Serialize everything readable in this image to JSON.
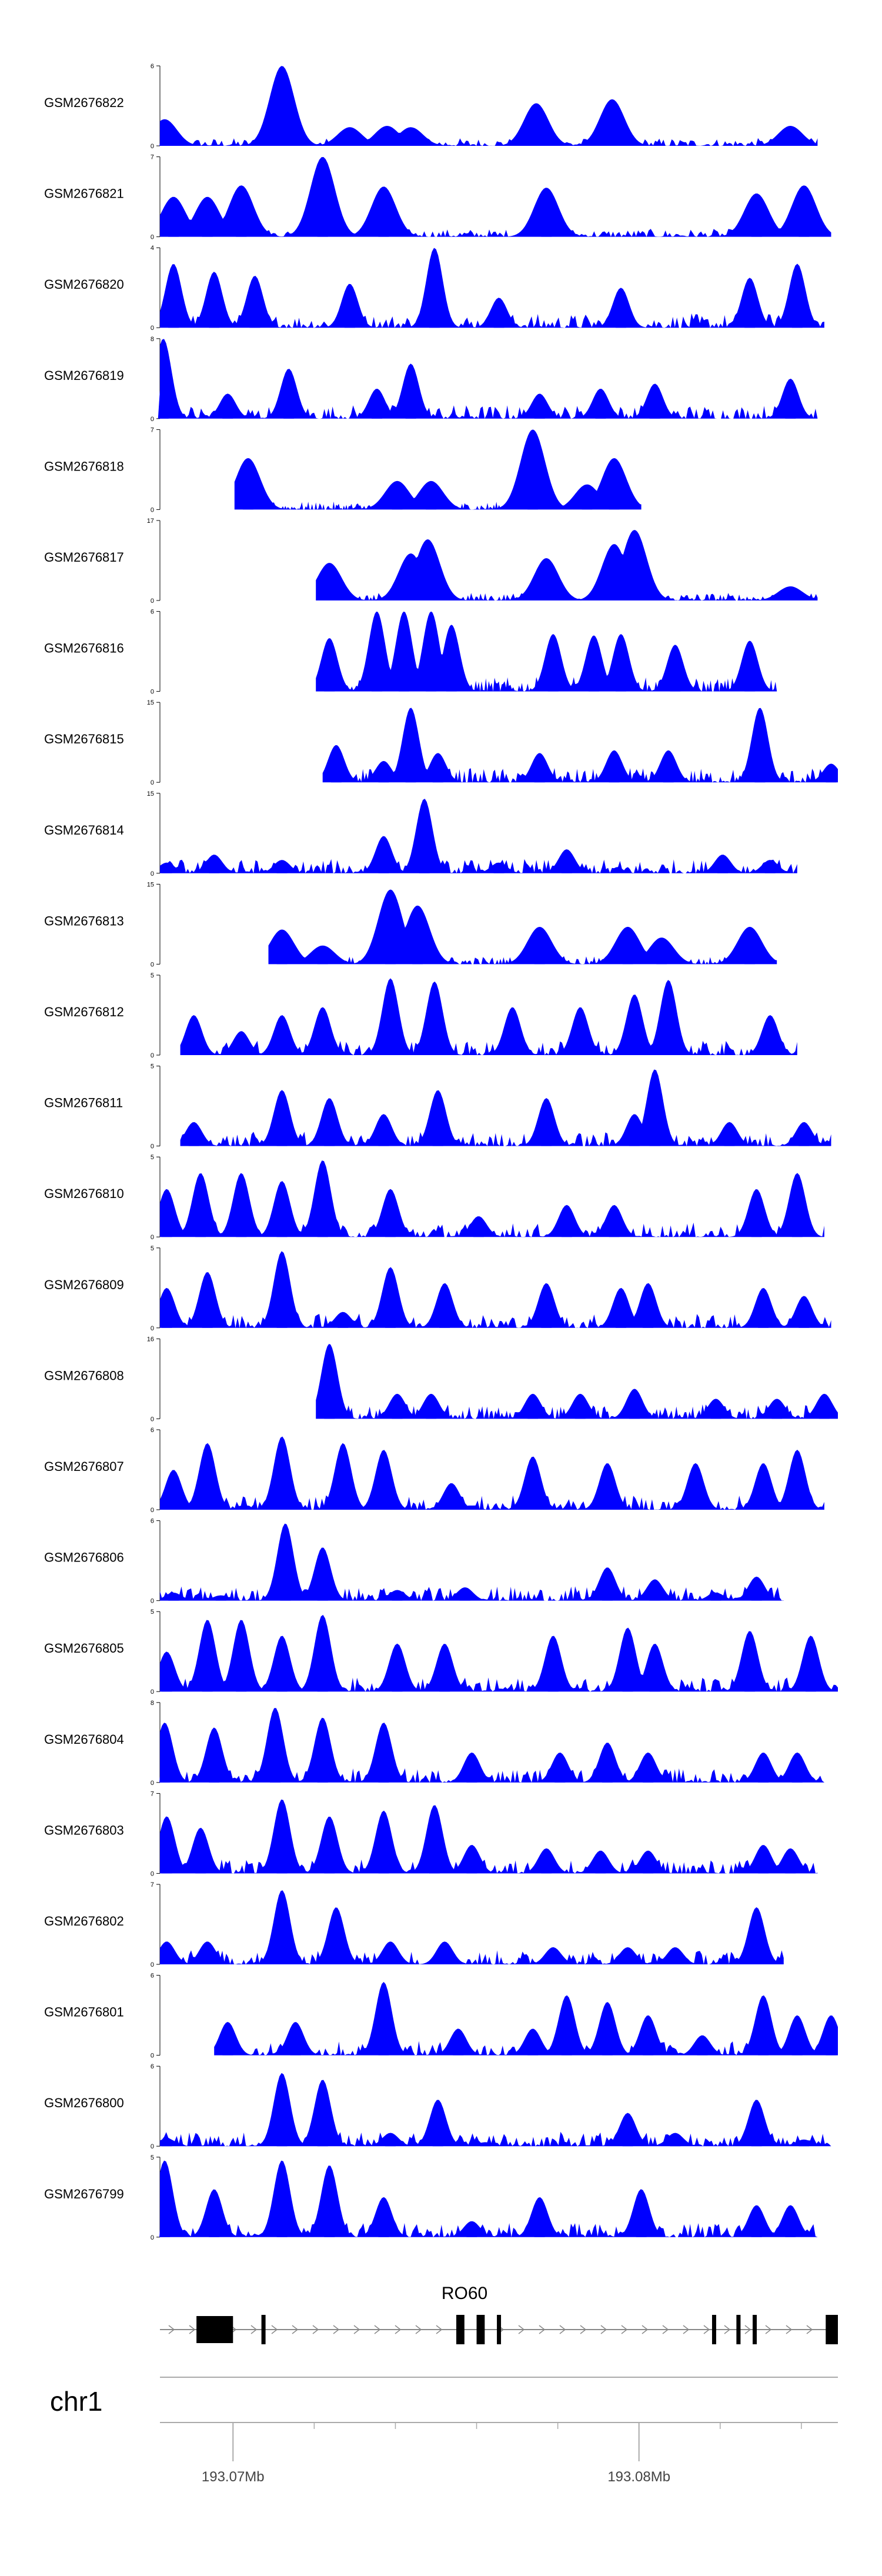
{
  "chart_data": {
    "type": "area",
    "title": "",
    "fill_color": "#0000FF",
    "axis_color": "#000000",
    "series": [
      {
        "name": "GSM2676822",
        "ymax": 6,
        "peaks": [
          [
            0.007,
            2
          ],
          [
            0.18,
            6
          ],
          [
            0.28,
            1.4
          ],
          [
            0.335,
            1.5
          ],
          [
            0.37,
            1.4
          ],
          [
            0.555,
            3.2
          ],
          [
            0.667,
            3.5
          ],
          [
            0.93,
            1.5
          ]
        ]
      },
      {
        "name": "GSM2676821",
        "ymax": 7,
        "peaks": [
          [
            0.02,
            3.5
          ],
          [
            0.07,
            3.5
          ],
          [
            0.12,
            4.5
          ],
          [
            0.24,
            7
          ],
          [
            0.33,
            4.4
          ],
          [
            0.57,
            4.3
          ],
          [
            0.88,
            3.8
          ],
          [
            0.95,
            4.5
          ]
        ]
      },
      {
        "name": "GSM2676820",
        "ymax": 4,
        "peaks": [
          [
            0.02,
            3.2
          ],
          [
            0.08,
            2.8
          ],
          [
            0.14,
            2.6
          ],
          [
            0.28,
            2.2
          ],
          [
            0.405,
            4
          ],
          [
            0.5,
            1.5
          ],
          [
            0.68,
            2
          ],
          [
            0.87,
            2.5
          ],
          [
            0.94,
            3.2
          ]
        ]
      },
      {
        "name": "GSM2676819",
        "ymax": 8,
        "peaks": [
          [
            0.005,
            8
          ],
          [
            0.1,
            2.5
          ],
          [
            0.19,
            5
          ],
          [
            0.32,
            3
          ],
          [
            0.37,
            5.5
          ],
          [
            0.56,
            2.5
          ],
          [
            0.65,
            3
          ],
          [
            0.73,
            3.5
          ],
          [
            0.93,
            4
          ]
        ]
      },
      {
        "name": "GSM2676818",
        "ymax": 7,
        "peaks": [
          [
            0.13,
            4.5
          ],
          [
            0.35,
            2.5
          ],
          [
            0.4,
            2.5
          ],
          [
            0.55,
            7
          ],
          [
            0.63,
            2.2
          ],
          [
            0.67,
            4.5
          ]
        ]
      },
      {
        "name": "GSM2676817",
        "ymax": 17,
        "peaks": [
          [
            0.25,
            8
          ],
          [
            0.37,
            10
          ],
          [
            0.395,
            13
          ],
          [
            0.57,
            9
          ],
          [
            0.67,
            12
          ],
          [
            0.7,
            15
          ],
          [
            0.93,
            3
          ]
        ]
      },
      {
        "name": "GSM2676816",
        "ymax": 6,
        "peaks": [
          [
            0.25,
            4
          ],
          [
            0.32,
            6
          ],
          [
            0.36,
            6
          ],
          [
            0.4,
            6
          ],
          [
            0.43,
            5
          ],
          [
            0.58,
            4.3
          ],
          [
            0.64,
            4.2
          ],
          [
            0.68,
            4.3
          ],
          [
            0.76,
            3.5
          ],
          [
            0.87,
            3.8
          ]
        ]
      },
      {
        "name": "GSM2676815",
        "ymax": 15,
        "peaks": [
          [
            0.26,
            7
          ],
          [
            0.33,
            4
          ],
          [
            0.37,
            14
          ],
          [
            0.41,
            5.5
          ],
          [
            0.56,
            5.5
          ],
          [
            0.67,
            6
          ],
          [
            0.75,
            6
          ],
          [
            0.885,
            14
          ],
          [
            0.99,
            3.5
          ]
        ]
      },
      {
        "name": "GSM2676814",
        "ymax": 15,
        "peaks": [
          [
            0.01,
            2
          ],
          [
            0.08,
            3.5
          ],
          [
            0.18,
            2.5
          ],
          [
            0.33,
            7
          ],
          [
            0.39,
            14
          ],
          [
            0.5,
            2
          ],
          [
            0.6,
            4.5
          ],
          [
            0.83,
            3.5
          ],
          [
            0.9,
            2.5
          ]
        ]
      },
      {
        "name": "GSM2676813",
        "ymax": 15,
        "peaks": [
          [
            0.18,
            6.5
          ],
          [
            0.24,
            3.5
          ],
          [
            0.34,
            14
          ],
          [
            0.38,
            11
          ],
          [
            0.56,
            7
          ],
          [
            0.69,
            7
          ],
          [
            0.74,
            5
          ],
          [
            0.87,
            7
          ]
        ]
      },
      {
        "name": "GSM2676812",
        "ymax": 5,
        "peaks": [
          [
            0.05,
            2.5
          ],
          [
            0.12,
            1.5
          ],
          [
            0.18,
            2.5
          ],
          [
            0.24,
            3
          ],
          [
            0.34,
            4.8
          ],
          [
            0.405,
            4.6
          ],
          [
            0.52,
            3
          ],
          [
            0.62,
            3
          ],
          [
            0.7,
            3.8
          ],
          [
            0.75,
            4.7
          ],
          [
            0.9,
            2.5
          ]
        ]
      },
      {
        "name": "GSM2676811",
        "ymax": 5,
        "peaks": [
          [
            0.05,
            1.5
          ],
          [
            0.18,
            3.5
          ],
          [
            0.25,
            3
          ],
          [
            0.33,
            2
          ],
          [
            0.41,
            3.5
          ],
          [
            0.57,
            3
          ],
          [
            0.7,
            2
          ],
          [
            0.73,
            4.8
          ],
          [
            0.84,
            1.5
          ],
          [
            0.95,
            1.5
          ]
        ]
      },
      {
        "name": "GSM2676810",
        "ymax": 5,
        "peaks": [
          [
            0.01,
            3
          ],
          [
            0.06,
            4
          ],
          [
            0.12,
            4
          ],
          [
            0.18,
            3.5
          ],
          [
            0.24,
            4.8
          ],
          [
            0.34,
            3
          ],
          [
            0.47,
            1.3
          ],
          [
            0.6,
            2
          ],
          [
            0.67,
            2
          ],
          [
            0.88,
            3
          ],
          [
            0.94,
            4
          ]
        ]
      },
      {
        "name": "GSM2676809",
        "ymax": 5,
        "peaks": [
          [
            0.01,
            2.5
          ],
          [
            0.07,
            3.5
          ],
          [
            0.18,
            4.8
          ],
          [
            0.27,
            1
          ],
          [
            0.34,
            3.8
          ],
          [
            0.42,
            2.8
          ],
          [
            0.57,
            2.8
          ],
          [
            0.68,
            2.5
          ],
          [
            0.72,
            2.8
          ],
          [
            0.89,
            2.5
          ],
          [
            0.95,
            2
          ]
        ]
      },
      {
        "name": "GSM2676808",
        "ymax": 16,
        "peaks": [
          [
            0.25,
            15
          ],
          [
            0.35,
            5
          ],
          [
            0.4,
            5
          ],
          [
            0.55,
            5
          ],
          [
            0.62,
            5
          ],
          [
            0.7,
            6
          ],
          [
            0.82,
            4
          ],
          [
            0.91,
            4
          ],
          [
            0.98,
            5
          ]
        ]
      },
      {
        "name": "GSM2676807",
        "ymax": 6,
        "peaks": [
          [
            0.02,
            3
          ],
          [
            0.07,
            5
          ],
          [
            0.18,
            5.5
          ],
          [
            0.27,
            5
          ],
          [
            0.33,
            4.5
          ],
          [
            0.43,
            2
          ],
          [
            0.55,
            4
          ],
          [
            0.66,
            3.5
          ],
          [
            0.79,
            3.5
          ],
          [
            0.89,
            3.5
          ],
          [
            0.94,
            4.5
          ]
        ]
      },
      {
        "name": "GSM2676806",
        "ymax": 6,
        "peaks": [
          [
            0.02,
            0.6
          ],
          [
            0.09,
            0.4
          ],
          [
            0.185,
            5.8
          ],
          [
            0.24,
            4
          ],
          [
            0.35,
            0.8
          ],
          [
            0.45,
            1
          ],
          [
            0.66,
            2.5
          ],
          [
            0.73,
            1.6
          ],
          [
            0.82,
            0.6
          ],
          [
            0.88,
            1.8
          ]
        ]
      },
      {
        "name": "GSM2676805",
        "ymax": 5,
        "peaks": [
          [
            0.01,
            2.5
          ],
          [
            0.07,
            4.5
          ],
          [
            0.12,
            4.5
          ],
          [
            0.18,
            3.5
          ],
          [
            0.24,
            4.8
          ],
          [
            0.35,
            3
          ],
          [
            0.42,
            3
          ],
          [
            0.58,
            3.5
          ],
          [
            0.69,
            4
          ],
          [
            0.73,
            3
          ],
          [
            0.87,
            3.8
          ],
          [
            0.96,
            3.5
          ]
        ]
      },
      {
        "name": "GSM2676804",
        "ymax": 8,
        "peaks": [
          [
            0.007,
            6
          ],
          [
            0.08,
            5.5
          ],
          [
            0.17,
            7.5
          ],
          [
            0.24,
            6.5
          ],
          [
            0.33,
            6
          ],
          [
            0.46,
            3
          ],
          [
            0.59,
            3
          ],
          [
            0.66,
            4
          ],
          [
            0.72,
            3
          ],
          [
            0.89,
            3
          ],
          [
            0.94,
            3
          ]
        ]
      },
      {
        "name": "GSM2676803",
        "ymax": 7,
        "peaks": [
          [
            0.01,
            5
          ],
          [
            0.06,
            4
          ],
          [
            0.18,
            6.5
          ],
          [
            0.25,
            5
          ],
          [
            0.33,
            5.5
          ],
          [
            0.405,
            6
          ],
          [
            0.46,
            2.5
          ],
          [
            0.57,
            2.2
          ],
          [
            0.65,
            2
          ],
          [
            0.72,
            2
          ],
          [
            0.89,
            2.5
          ],
          [
            0.93,
            2.2
          ]
        ]
      },
      {
        "name": "GSM2676802",
        "ymax": 7,
        "peaks": [
          [
            0.01,
            2
          ],
          [
            0.07,
            2
          ],
          [
            0.18,
            6.5
          ],
          [
            0.26,
            5
          ],
          [
            0.34,
            2
          ],
          [
            0.42,
            2
          ],
          [
            0.58,
            1.5
          ],
          [
            0.69,
            1.5
          ],
          [
            0.76,
            1.5
          ],
          [
            0.88,
            5
          ]
        ]
      },
      {
        "name": "GSM2676801",
        "ymax": 6,
        "peaks": [
          [
            0.1,
            2.5
          ],
          [
            0.2,
            2.5
          ],
          [
            0.33,
            5.5
          ],
          [
            0.44,
            2
          ],
          [
            0.55,
            2
          ],
          [
            0.6,
            4.5
          ],
          [
            0.66,
            4
          ],
          [
            0.72,
            3
          ],
          [
            0.8,
            1.5
          ],
          [
            0.89,
            4.5
          ],
          [
            0.94,
            3
          ],
          [
            0.99,
            3
          ]
        ]
      },
      {
        "name": "GSM2676800",
        "ymax": 6,
        "peaks": [
          [
            0.01,
            0.6
          ],
          [
            0.18,
            5.5
          ],
          [
            0.24,
            5
          ],
          [
            0.34,
            1
          ],
          [
            0.41,
            3.5
          ],
          [
            0.48,
            0.3
          ],
          [
            0.69,
            2.5
          ],
          [
            0.76,
            1
          ],
          [
            0.88,
            3.5
          ],
          [
            0.95,
            0.5
          ]
        ]
      },
      {
        "name": "GSM2676799",
        "ymax": 5,
        "peaks": [
          [
            0.007,
            4.8
          ],
          [
            0.08,
            3
          ],
          [
            0.18,
            4.8
          ],
          [
            0.25,
            4.5
          ],
          [
            0.33,
            2.5
          ],
          [
            0.46,
            1
          ],
          [
            0.56,
            2.5
          ],
          [
            0.71,
            3
          ],
          [
            0.88,
            2
          ],
          [
            0.93,
            2
          ]
        ]
      }
    ],
    "x_axis": {
      "chromosome": "chr1",
      "ticks": [
        {
          "position_mb": 193.07,
          "label": "193.07Mb"
        },
        {
          "position_mb": 193.08,
          "label": "193.08Mb"
        }
      ],
      "range_mb": [
        193.0682,
        193.0849
      ]
    },
    "gene": {
      "name": "RO60",
      "exons": [
        [
          193.0691,
          193.07
        ],
        [
          193.0707,
          193.0708
        ],
        [
          193.0755,
          193.0757
        ],
        [
          193.076,
          193.0762
        ],
        [
          193.0765,
          193.0766
        ],
        [
          193.0818,
          193.0819
        ],
        [
          193.0824,
          193.0825
        ],
        [
          193.0828,
          193.0829
        ],
        [
          193.0846,
          193.0849
        ]
      ],
      "strand": "+"
    }
  }
}
